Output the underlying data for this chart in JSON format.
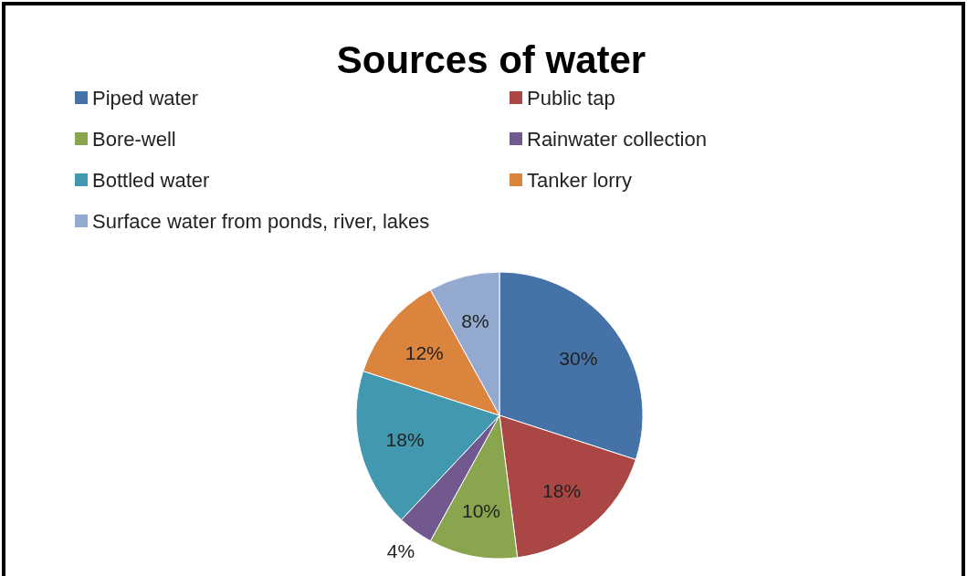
{
  "chart_data": {
    "type": "pie",
    "title": "Sources of water",
    "categories": [
      "Piped water",
      "Public tap",
      "Bore-well",
      "Rainwater collection",
      "Bottled water",
      "Tanker lorry",
      "Surface water from ponds, river, lakes"
    ],
    "values": [
      30,
      18,
      10,
      4,
      18,
      12,
      8
    ],
    "value_labels": [
      "30%",
      "18%",
      "10%",
      "4%",
      "18%",
      "12%",
      "8%"
    ],
    "colors": [
      "#4572a7",
      "#aa4643",
      "#89a54e",
      "#71588f",
      "#4198af",
      "#db843d",
      "#93a9cf"
    ],
    "legend": "top"
  }
}
